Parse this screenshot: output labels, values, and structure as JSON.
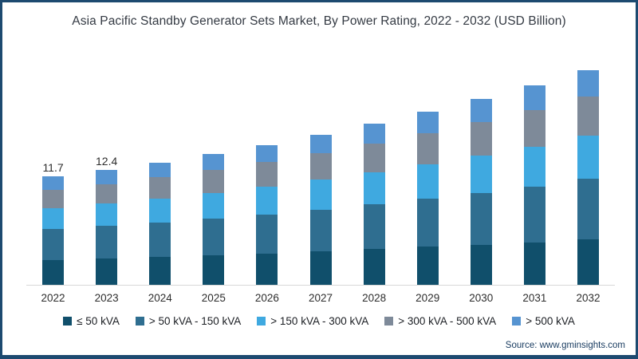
{
  "title": "Asia Pacific Standby Generator Sets Market, By Power Rating, 2022 - 2032 (USD Billion)",
  "source": "Source: www.gminsights.com",
  "frame": {
    "border_color": "#1d4a70",
    "background": "#ffffff"
  },
  "chart_data": {
    "type": "bar",
    "stacked": true,
    "title": "Asia Pacific Standby Generator Sets Market, By Power Rating, 2022 - 2032 (USD Billion)",
    "xlabel": "",
    "ylabel": "USD Billion",
    "ylim": [
      0,
      25
    ],
    "grid": false,
    "legend_position": "bottom",
    "categories": [
      "2022",
      "2023",
      "2024",
      "2025",
      "2026",
      "2027",
      "2028",
      "2029",
      "2030",
      "2031",
      "2032"
    ],
    "series": [
      {
        "name": "≤ 50 kVA",
        "color": "#104f6b",
        "values": [
          2.7,
          2.85,
          3.0,
          3.2,
          3.35,
          3.6,
          3.85,
          4.1,
          4.35,
          4.6,
          4.95
        ]
      },
      {
        "name": "> 50 kVA - 150 kVA",
        "color": "#2f6e90",
        "values": [
          3.3,
          3.5,
          3.7,
          3.95,
          4.25,
          4.5,
          4.85,
          5.2,
          5.6,
          6.0,
          6.5
        ]
      },
      {
        "name": "> 150 kVA - 300 kVA",
        "color": "#3fa9e0",
        "values": [
          2.3,
          2.45,
          2.6,
          2.8,
          3.0,
          3.25,
          3.5,
          3.75,
          4.05,
          4.35,
          4.7
        ]
      },
      {
        "name": "> 300 kVA - 500 kVA",
        "color": "#7e8a99",
        "values": [
          2.0,
          2.1,
          2.3,
          2.45,
          2.65,
          2.85,
          3.1,
          3.35,
          3.6,
          3.9,
          4.2
        ]
      },
      {
        "name": "> 500 kVA",
        "color": "#5694d1",
        "values": [
          1.4,
          1.5,
          1.6,
          1.7,
          1.85,
          2.0,
          2.1,
          2.3,
          2.5,
          2.7,
          2.85
        ]
      }
    ],
    "totals": [
      11.7,
      12.4,
      13.2,
      14.1,
      15.1,
      16.2,
      17.4,
      18.7,
      20.1,
      21.6,
      23.2
    ],
    "data_labels": [
      "11.7",
      "12.4",
      null,
      null,
      null,
      null,
      null,
      null,
      null,
      null,
      null
    ]
  }
}
